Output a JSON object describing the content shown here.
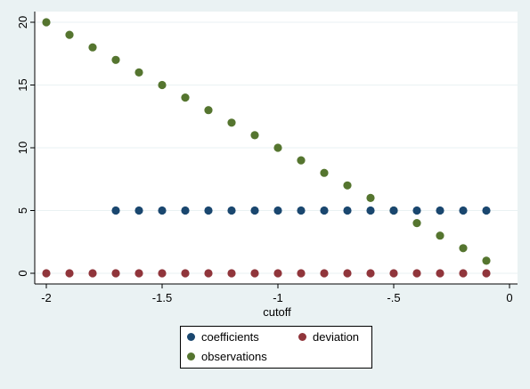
{
  "chart_data": {
    "type": "scatter",
    "title": "",
    "xlabel": "cutoff",
    "ylabel": "",
    "xlim": [
      -2,
      0
    ],
    "ylim": [
      0,
      20
    ],
    "x_ticks": [
      -2,
      -1.5,
      -1,
      -0.5,
      0
    ],
    "x_tick_labels": [
      "-2",
      "-1.5",
      "-1",
      "-.5",
      "0"
    ],
    "y_ticks": [
      0,
      5,
      10,
      15,
      20
    ],
    "y_tick_labels": [
      "0",
      "5",
      "10",
      "15",
      "20"
    ],
    "grid": "horizontal",
    "legend_position": "bottom",
    "series": [
      {
        "name": "coefficients",
        "color": "#1a476f",
        "x": [
          -1.7,
          -1.6,
          -1.5,
          -1.4,
          -1.3,
          -1.2,
          -1.1,
          -1.0,
          -0.9,
          -0.8,
          -0.7,
          -0.6,
          -0.5,
          -0.4,
          -0.3,
          -0.2,
          -0.1
        ],
        "y": [
          5,
          5,
          5,
          5,
          5,
          5,
          5,
          5,
          5,
          5,
          5,
          5,
          5,
          5,
          5,
          5,
          5
        ]
      },
      {
        "name": "deviation",
        "color": "#90353b",
        "x": [
          -2.0,
          -1.9,
          -1.8,
          -1.7,
          -1.6,
          -1.5,
          -1.4,
          -1.3,
          -1.2,
          -1.1,
          -1.0,
          -0.9,
          -0.8,
          -0.7,
          -0.6,
          -0.5,
          -0.4,
          -0.3,
          -0.2,
          -0.1
        ],
        "y": [
          0,
          0,
          0,
          0,
          0,
          0,
          0,
          0,
          0,
          0,
          0,
          0,
          0,
          0,
          0,
          0,
          0,
          0,
          0,
          0
        ]
      },
      {
        "name": "observations",
        "color": "#55752f",
        "x": [
          -2.0,
          -1.9,
          -1.8,
          -1.7,
          -1.6,
          -1.5,
          -1.4,
          -1.3,
          -1.2,
          -1.1,
          -1.0,
          -0.9,
          -0.8,
          -0.7,
          -0.6,
          -0.5,
          -0.4,
          -0.3,
          -0.2,
          -0.1
        ],
        "y": [
          20,
          19,
          18,
          17,
          16,
          15,
          14,
          13,
          12,
          11,
          10,
          9,
          8,
          7,
          6,
          5,
          4,
          3,
          2,
          1
        ]
      }
    ],
    "colors": {
      "plot_background": "#ffffff",
      "figure_background": "#eaf2f3",
      "gridline": "#eaf2f3",
      "axis": "#000000"
    }
  }
}
